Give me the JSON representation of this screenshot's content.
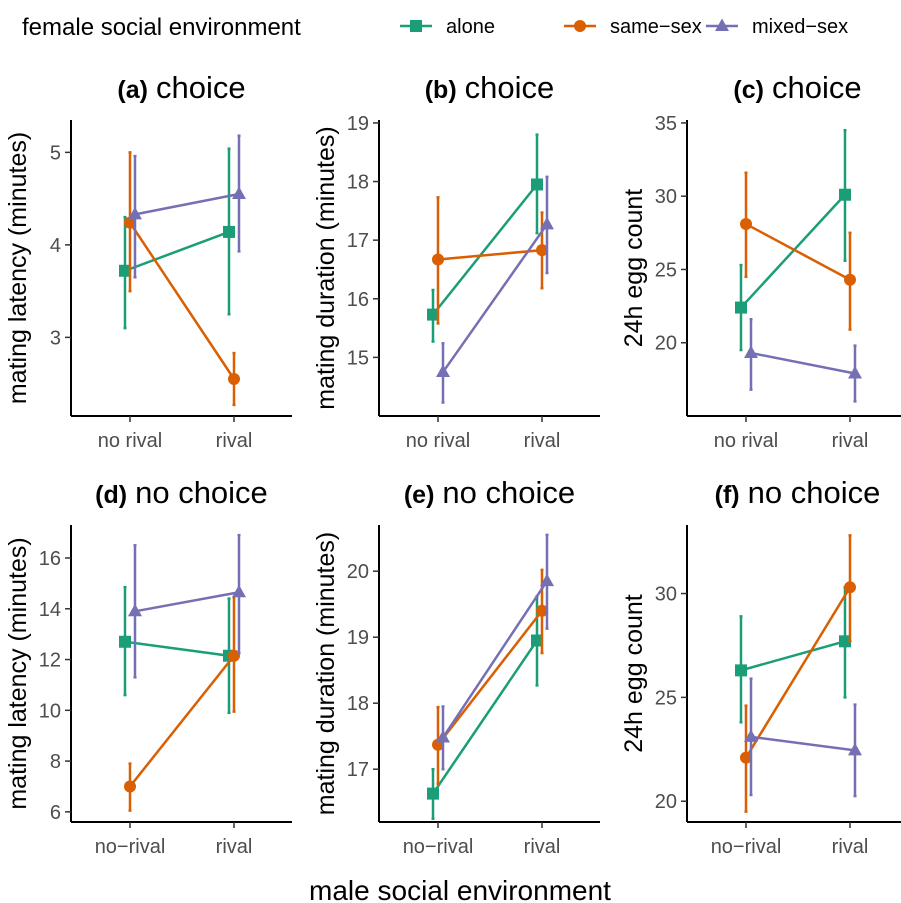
{
  "legend": {
    "title": "female social environment",
    "entries": [
      {
        "name": "alone",
        "color": "#1b9e77",
        "shape": "square"
      },
      {
        "name": "same−sex",
        "color": "#d95f02",
        "shape": "circle"
      },
      {
        "name": "mixed−sex",
        "color": "#7570b3",
        "shape": "triangle"
      }
    ]
  },
  "xlabel": "male social environment",
  "chart_data": [
    {
      "type": "line",
      "tag": "(a)",
      "title": "choice",
      "ylabel": "mating latency (minutes)",
      "categories": [
        "no rival",
        "rival"
      ],
      "ylim": [
        2.15,
        5.35
      ],
      "yticks": [
        3,
        4,
        5
      ],
      "series": [
        {
          "name": "alone",
          "values": [
            3.72,
            4.14
          ],
          "lower": [
            3.1,
            3.25
          ],
          "upper": [
            4.3,
            5.04
          ]
        },
        {
          "name": "same−sex",
          "values": [
            4.24,
            2.55
          ],
          "lower": [
            3.5,
            2.27
          ],
          "upper": [
            5.0,
            2.83
          ]
        },
        {
          "name": "mixed−sex",
          "values": [
            4.33,
            4.55
          ],
          "lower": [
            3.65,
            3.93
          ],
          "upper": [
            4.96,
            5.18
          ]
        }
      ]
    },
    {
      "type": "line",
      "tag": "(b)",
      "title": "choice",
      "ylabel": "mating duration (minutes)",
      "categories": [
        "no rival",
        "rival"
      ],
      "ylim": [
        14.0,
        19.05
      ],
      "yticks": [
        15,
        16,
        17,
        18,
        19
      ],
      "series": [
        {
          "name": "alone",
          "values": [
            15.73,
            17.95
          ],
          "lower": [
            15.27,
            17.12
          ],
          "upper": [
            16.15,
            18.8
          ]
        },
        {
          "name": "same−sex",
          "values": [
            16.67,
            16.83
          ],
          "lower": [
            15.58,
            16.18
          ],
          "upper": [
            17.73,
            17.47
          ]
        },
        {
          "name": "mixed−sex",
          "values": [
            14.75,
            17.27
          ],
          "lower": [
            14.23,
            16.44
          ],
          "upper": [
            15.24,
            18.08
          ]
        }
      ]
    },
    {
      "type": "line",
      "tag": "(c)",
      "title": "choice",
      "ylabel": "24h egg count",
      "categories": [
        "no rival",
        "rival"
      ],
      "ylim": [
        15.0,
        35.2
      ],
      "yticks": [
        20,
        25,
        30,
        35
      ],
      "series": [
        {
          "name": "alone",
          "values": [
            22.4,
            30.1
          ],
          "lower": [
            19.5,
            25.6
          ],
          "upper": [
            25.3,
            34.5
          ]
        },
        {
          "name": "same−sex",
          "values": [
            28.1,
            24.3
          ],
          "lower": [
            24.5,
            20.9
          ],
          "upper": [
            31.6,
            27.5
          ]
        },
        {
          "name": "mixed−sex",
          "values": [
            19.3,
            17.9
          ],
          "lower": [
            16.8,
            16.0
          ],
          "upper": [
            21.6,
            19.8
          ]
        }
      ]
    },
    {
      "type": "line",
      "tag": "(d)",
      "title": "no choice",
      "ylabel": "mating latency (minutes)",
      "categories": [
        "no−rival",
        "rival"
      ],
      "ylim": [
        5.6,
        17.3
      ],
      "yticks": [
        6,
        8,
        10,
        12,
        14,
        16
      ],
      "series": [
        {
          "name": "alone",
          "values": [
            12.7,
            12.15
          ],
          "lower": [
            10.6,
            9.9
          ],
          "upper": [
            14.85,
            14.4
          ]
        },
        {
          "name": "same−sex",
          "values": [
            7.0,
            12.15
          ],
          "lower": [
            6.05,
            9.95
          ],
          "upper": [
            7.9,
            14.45
          ]
        },
        {
          "name": "mixed−sex",
          "values": [
            13.9,
            14.65
          ],
          "lower": [
            11.3,
            12.25
          ],
          "upper": [
            16.5,
            16.9
          ]
        }
      ]
    },
    {
      "type": "line",
      "tag": "(e)",
      "title": "no choice",
      "ylabel": "mating duration (minutes)",
      "categories": [
        "no−rival",
        "rival"
      ],
      "ylim": [
        16.2,
        20.7
      ],
      "yticks": [
        17,
        18,
        19,
        20
      ],
      "series": [
        {
          "name": "alone",
          "values": [
            16.63,
            18.95
          ],
          "lower": [
            16.25,
            18.27
          ],
          "upper": [
            17.0,
            19.62
          ]
        },
        {
          "name": "same−sex",
          "values": [
            17.37,
            19.4
          ],
          "lower": [
            16.78,
            18.76
          ],
          "upper": [
            17.94,
            20.02
          ]
        },
        {
          "name": "mixed−sex",
          "values": [
            17.48,
            19.85
          ],
          "lower": [
            17.0,
            19.13
          ],
          "upper": [
            17.95,
            20.55
          ]
        }
      ]
    },
    {
      "type": "line",
      "tag": "(f)",
      "title": "no choice",
      "ylabel": "24h egg count",
      "categories": [
        "no−rival",
        "rival"
      ],
      "ylim": [
        19.0,
        33.3
      ],
      "yticks": [
        20,
        25,
        30
      ],
      "series": [
        {
          "name": "alone",
          "values": [
            26.3,
            27.7
          ],
          "lower": [
            23.8,
            25.0
          ],
          "upper": [
            28.9,
            30.3
          ]
        },
        {
          "name": "same−sex",
          "values": [
            22.1,
            30.3
          ],
          "lower": [
            19.5,
            27.7
          ],
          "upper": [
            24.6,
            32.8
          ]
        },
        {
          "name": "mixed−sex",
          "values": [
            23.1,
            22.45
          ],
          "lower": [
            20.3,
            20.25
          ],
          "upper": [
            25.9,
            24.65
          ]
        }
      ]
    }
  ]
}
